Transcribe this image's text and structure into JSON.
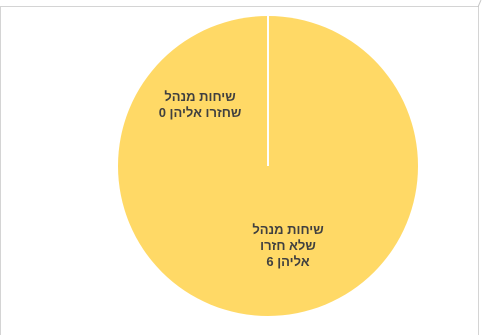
{
  "chart_data": {
    "type": "pie",
    "categories": [
      "שיחות מנהל שחזרו אליהן",
      "שיחות מנהל שלא חזרו אליהן"
    ],
    "values": [
      0,
      6
    ],
    "colors": [
      "#ffd966",
      "#ffd966"
    ],
    "slice_border_color": "#ffffff",
    "data_labels": [
      {
        "line1": "שיחות מנהל",
        "line2": "שחזרו אליהן 0",
        "line3": ""
      },
      {
        "line1": "שיחות מנהל",
        "line2": "שלא חזרו",
        "line3": "אליהן  6"
      }
    ],
    "title": "",
    "legend": "none"
  }
}
